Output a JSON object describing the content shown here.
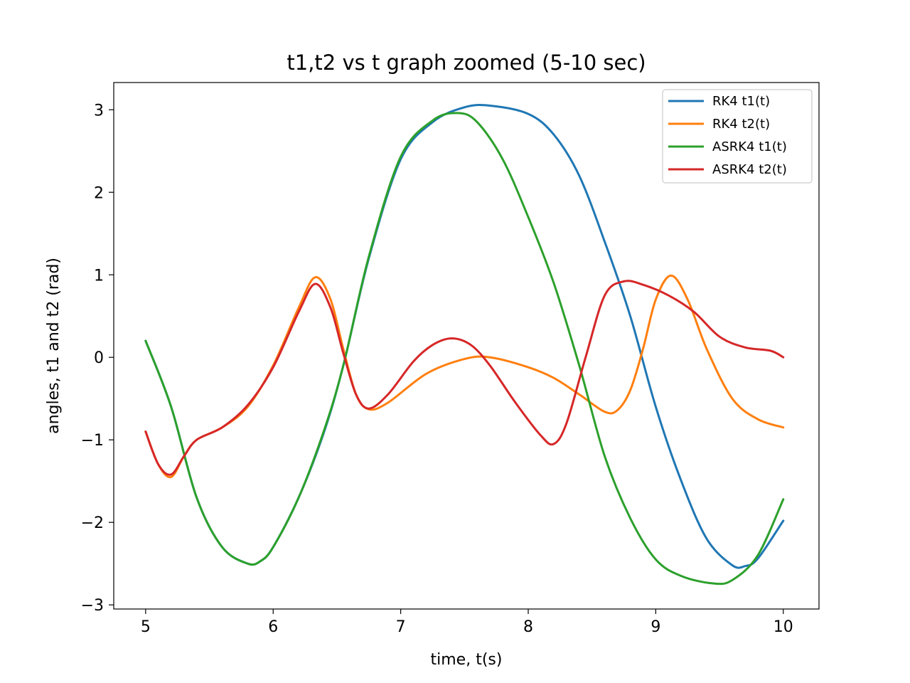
{
  "chart_data": {
    "type": "line",
    "title": "t1,t2 vs t graph zoomed (5-10 sec)",
    "xlabel": "time, t(s)",
    "ylabel": "angles, t1 and t2 (rad)",
    "xlim": [
      4.75,
      10.28
    ],
    "ylim": [
      -3.05,
      3.33
    ],
    "xticks": [
      5,
      6,
      7,
      8,
      9,
      10
    ],
    "xtick_labels": [
      "5",
      "6",
      "7",
      "8",
      "9",
      "10"
    ],
    "yticks": [
      -3,
      -2,
      -1,
      0,
      1,
      2,
      3
    ],
    "ytick_labels": [
      "−3",
      "−2",
      "−1",
      "0",
      "1",
      "2",
      "3"
    ],
    "grid": false,
    "legend_position": "top-right",
    "series": [
      {
        "name": "RK4 t1(t)",
        "color": "#1f77b4",
        "x": [
          5.0,
          5.2,
          5.4,
          5.6,
          5.8,
          5.9,
          6.0,
          6.2,
          6.4,
          6.55,
          6.75,
          7.0,
          7.25,
          7.5,
          7.7,
          8.0,
          8.2,
          8.4,
          8.6,
          8.8,
          9.0,
          9.2,
          9.4,
          9.6,
          9.7,
          9.8,
          10.0
        ],
        "y": [
          0.2,
          -0.6,
          -1.7,
          -2.3,
          -2.5,
          -2.47,
          -2.3,
          -1.7,
          -0.9,
          -0.1,
          1.2,
          2.4,
          2.85,
          3.03,
          3.05,
          2.95,
          2.7,
          2.2,
          1.4,
          0.5,
          -0.6,
          -1.5,
          -2.2,
          -2.52,
          -2.53,
          -2.44,
          -1.98
        ]
      },
      {
        "name": "RK4 t2(t)",
        "color": "#ff7f0e",
        "x": [
          5.0,
          5.1,
          5.2,
          5.3,
          5.4,
          5.6,
          5.8,
          6.0,
          6.2,
          6.33,
          6.45,
          6.55,
          6.65,
          6.75,
          6.9,
          7.2,
          7.5,
          7.7,
          8.0,
          8.2,
          8.4,
          8.6,
          8.7,
          8.8,
          8.9,
          9.0,
          9.12,
          9.25,
          9.4,
          9.6,
          9.8,
          10.0
        ],
        "y": [
          -0.9,
          -1.3,
          -1.45,
          -1.2,
          -1.0,
          -0.85,
          -0.6,
          -0.1,
          0.6,
          0.97,
          0.7,
          0.1,
          -0.45,
          -0.63,
          -0.55,
          -0.2,
          -0.02,
          0.0,
          -0.12,
          -0.25,
          -0.45,
          -0.66,
          -0.64,
          -0.4,
          0.1,
          0.7,
          0.99,
          0.7,
          0.1,
          -0.5,
          -0.75,
          -0.85
        ]
      },
      {
        "name": "ASRK4 t1(t)",
        "color": "#2ca02c",
        "x": [
          5.0,
          5.2,
          5.4,
          5.6,
          5.8,
          5.9,
          6.0,
          6.2,
          6.4,
          6.55,
          6.75,
          7.0,
          7.25,
          7.45,
          7.6,
          7.8,
          8.0,
          8.2,
          8.4,
          8.6,
          8.8,
          9.0,
          9.2,
          9.45,
          9.6,
          9.8,
          10.0
        ],
        "y": [
          0.2,
          -0.6,
          -1.7,
          -2.3,
          -2.5,
          -2.47,
          -2.3,
          -1.7,
          -0.88,
          -0.1,
          1.22,
          2.43,
          2.87,
          2.96,
          2.85,
          2.4,
          1.7,
          0.9,
          -0.1,
          -1.2,
          -1.95,
          -2.45,
          -2.65,
          -2.74,
          -2.7,
          -2.4,
          -1.72
        ]
      },
      {
        "name": "ASRK4 t2(t)",
        "color": "#d62728",
        "x": [
          5.0,
          5.1,
          5.2,
          5.3,
          5.4,
          5.6,
          5.8,
          6.0,
          6.2,
          6.33,
          6.45,
          6.55,
          6.65,
          6.75,
          6.9,
          7.1,
          7.25,
          7.4,
          7.55,
          7.7,
          7.9,
          8.1,
          8.2,
          8.3,
          8.45,
          8.6,
          8.75,
          8.9,
          9.1,
          9.3,
          9.5,
          9.7,
          9.9,
          10.0
        ],
        "y": [
          -0.9,
          -1.3,
          -1.42,
          -1.2,
          -1.0,
          -0.85,
          -0.58,
          -0.12,
          0.55,
          0.89,
          0.6,
          0.05,
          -0.45,
          -0.62,
          -0.45,
          -0.05,
          0.15,
          0.23,
          0.15,
          -0.1,
          -0.55,
          -0.95,
          -1.05,
          -0.8,
          0.0,
          0.75,
          0.92,
          0.88,
          0.75,
          0.55,
          0.25,
          0.12,
          0.08,
          0.0
        ]
      }
    ]
  }
}
